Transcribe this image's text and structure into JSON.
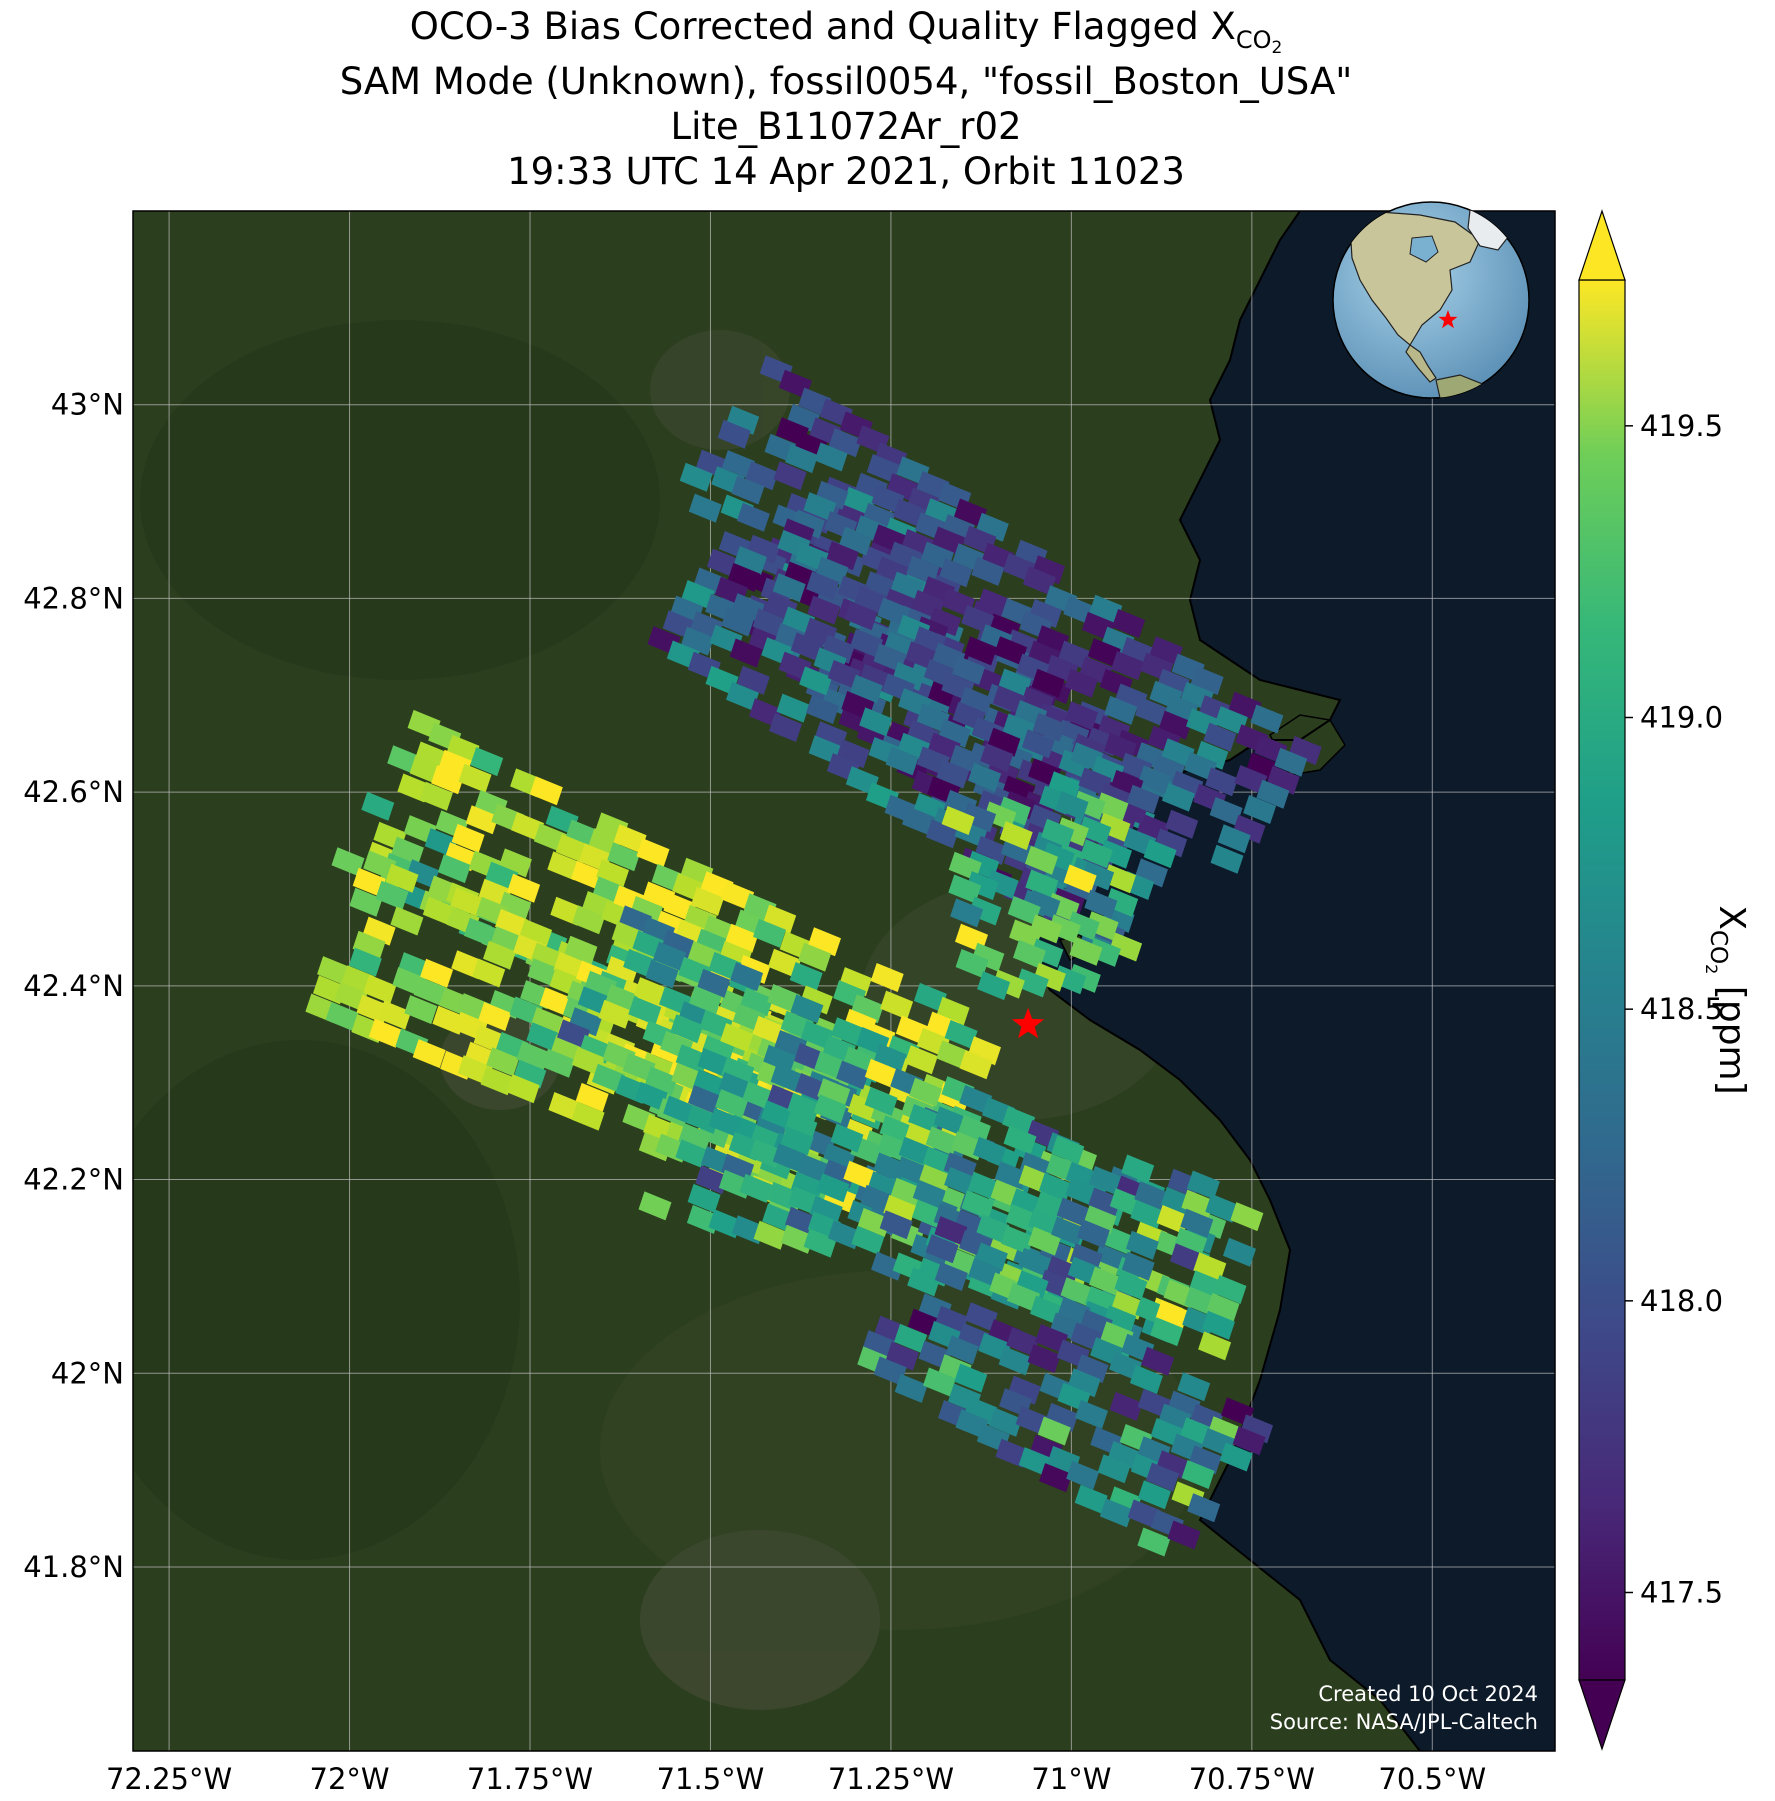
{
  "title": {
    "line1_prefix": "OCO-3 Bias Corrected and Quality Flagged X",
    "line1_subscript": "CO",
    "line1_subsubscript": "2",
    "line2": "SAM Mode (Unknown), fossil0054, \"fossil_Boston_USA\"",
    "line3": "Lite_B11072Ar_r02",
    "line4": "19:33 UTC 14 Apr 2021, Orbit 11023"
  },
  "map": {
    "lon_range": [
      -72.3,
      -70.33
    ],
    "lat_range": [
      41.61,
      43.2
    ],
    "lon_ticks": [
      {
        "value": -72.25,
        "label": "72.25°W"
      },
      {
        "value": -72.0,
        "label": "72°W"
      },
      {
        "value": -71.75,
        "label": "71.75°W"
      },
      {
        "value": -71.5,
        "label": "71.5°W"
      },
      {
        "value": -71.25,
        "label": "71.25°W"
      },
      {
        "value": -71.0,
        "label": "71°W"
      },
      {
        "value": -70.75,
        "label": "70.75°W"
      },
      {
        "value": -70.5,
        "label": "70.5°W"
      }
    ],
    "lat_ticks": [
      {
        "value": 43.0,
        "label": "43°N"
      },
      {
        "value": 42.8,
        "label": "42.8°N"
      },
      {
        "value": 42.6,
        "label": "42.6°N"
      },
      {
        "value": 42.4,
        "label": "42.4°N"
      },
      {
        "value": 42.2,
        "label": "42.2°N"
      },
      {
        "value": 42.0,
        "label": "42°N"
      },
      {
        "value": 41.8,
        "label": "41.8°N"
      }
    ],
    "target": {
      "name": "fossil_Boston_USA",
      "lon": -71.06,
      "lat": 42.36
    },
    "land_color": "#2b3e1e",
    "ocean_color": "#0c1a2a",
    "credit_line1": "Created 10 Oct 2024",
    "credit_line2": "Source: NASA/JPL-Caltech"
  },
  "colorbar": {
    "label_prefix": "X",
    "label_subscript": "CO",
    "label_subsubscript": "2",
    "label_suffix": " [ppm]",
    "min": 417.35,
    "max": 419.75,
    "ticks": [
      417.5,
      418.0,
      418.5,
      419.0,
      419.5
    ],
    "tick_labels": [
      "417.5",
      "418.0",
      "418.5",
      "419.0",
      "419.5"
    ],
    "colormap": "viridis",
    "extend": "both"
  },
  "chart_data": {
    "type": "map",
    "variable": "XCO2",
    "units": "ppm",
    "swaths": [
      {
        "start": [
          -71.47,
          42.97
        ],
        "end": [
          -70.72,
          42.57
        ],
        "mean": 417.95,
        "spread": 0.55
      },
      {
        "start": [
          -71.4,
          42.85
        ],
        "end": [
          -70.95,
          42.55
        ],
        "mean": 417.85,
        "spread": 0.55
      },
      {
        "start": [
          -71.5,
          42.82
        ],
        "end": [
          -70.9,
          42.5
        ],
        "mean": 418.05,
        "spread": 0.6
      },
      {
        "start": [
          -71.05,
          42.58
        ],
        "end": [
          -71.03,
          42.4
        ],
        "mean": 419.1,
        "spread": 0.6
      },
      {
        "start": [
          -71.95,
          42.6
        ],
        "end": [
          -71.15,
          42.28
        ],
        "mean": 419.35,
        "spread": 0.55
      },
      {
        "start": [
          -72.0,
          42.45
        ],
        "end": [
          -71.35,
          42.25
        ],
        "mean": 419.45,
        "spread": 0.45
      },
      {
        "start": [
          -71.65,
          42.4
        ],
        "end": [
          -70.85,
          42.08
        ],
        "mean": 418.85,
        "spread": 0.75
      },
      {
        "start": [
          -71.55,
          42.25
        ],
        "end": [
          -70.75,
          42.1
        ],
        "mean": 418.75,
        "spread": 0.7
      },
      {
        "start": [
          -71.22,
          42.08
        ],
        "end": [
          -70.78,
          41.87
        ],
        "mean": 418.3,
        "spread": 0.8
      }
    ]
  }
}
